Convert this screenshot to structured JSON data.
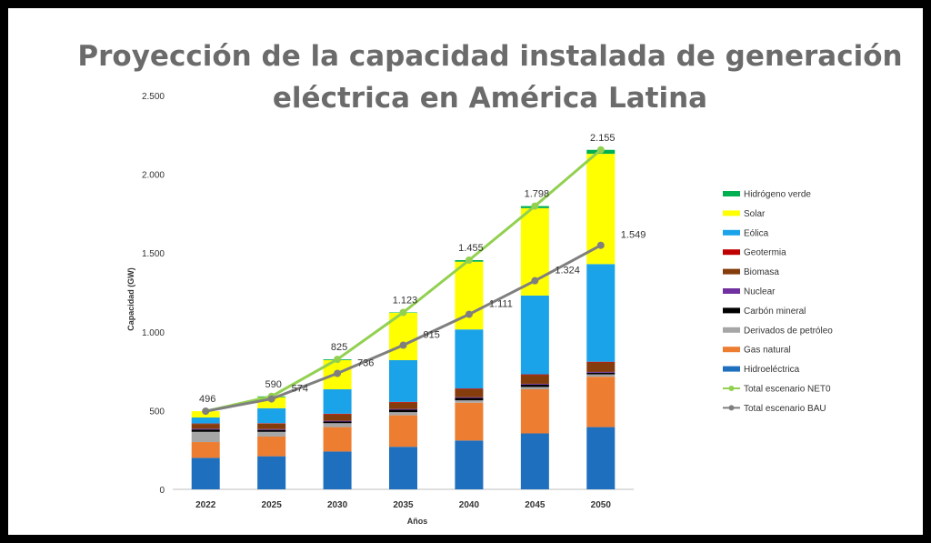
{
  "chart_data": {
    "type": "bar",
    "title": "Proyección de la capacidad instalada de generación eléctrica en América Latina",
    "xlabel": "Años",
    "ylabel": "Capacidad (GW)",
    "ylim": [
      0,
      2500
    ],
    "yticks": [
      0,
      500,
      1000,
      1500,
      2000,
      2500
    ],
    "ytick_labels": [
      "0",
      "500",
      "1.000",
      "1.500",
      "2.000",
      "2.500"
    ],
    "categories": [
      "2022",
      "2025",
      "2030",
      "2035",
      "2040",
      "2045",
      "2050"
    ],
    "grid": false,
    "legend_position": "right",
    "stacked_series": [
      {
        "name": "Hidroeléctrica",
        "color": "#1f6fbf",
        "values": [
          200,
          210,
          240,
          270,
          310,
          355,
          395
        ]
      },
      {
        "name": "Gas natural",
        "color": "#ed7d31",
        "values": [
          100,
          125,
          155,
          200,
          240,
          280,
          320
        ]
      },
      {
        "name": "Derivados de petróleo",
        "color": "#a6a6a6",
        "values": [
          65,
          30,
          25,
          20,
          15,
          15,
          15
        ]
      },
      {
        "name": "Carbón mineral",
        "color": "#000000",
        "values": [
          15,
          12,
          10,
          15,
          15,
          15,
          10
        ]
      },
      {
        "name": "Nuclear",
        "color": "#7030a0",
        "values": [
          5,
          5,
          5,
          5,
          5,
          5,
          5
        ]
      },
      {
        "name": "Biomasa",
        "color": "#843c0c",
        "values": [
          30,
          35,
          40,
          40,
          50,
          55,
          60
        ]
      },
      {
        "name": "Geotermia",
        "color": "#c00000",
        "values": [
          3,
          3,
          5,
          5,
          5,
          5,
          5
        ]
      },
      {
        "name": "Eólica",
        "color": "#1aa3e8",
        "values": [
          38,
          95,
          155,
          265,
          375,
          500,
          620
        ]
      },
      {
        "name": "Solar",
        "color": "#ffff00",
        "values": [
          40,
          70,
          185,
          300,
          430,
          555,
          700
        ]
      },
      {
        "name": "Hidrógeno verde",
        "color": "#00b050",
        "values": [
          0,
          5,
          5,
          3,
          10,
          13,
          25
        ]
      }
    ],
    "line_series": [
      {
        "name": "Total escenario NET0",
        "color": "#92d050",
        "values": [
          496,
          590,
          825,
          1123,
          1455,
          1798,
          2155
        ],
        "labels": [
          "496",
          "590",
          "825",
          "1.123",
          "1.455",
          "1.798",
          "2.155"
        ]
      },
      {
        "name": "Total escenario BAU",
        "color": "#7f7f7f",
        "values": [
          496,
          574,
          736,
          915,
          1111,
          1324,
          1549
        ],
        "labels": [
          "",
          "574",
          "736",
          "915",
          "1.111",
          "1.324",
          "1.549"
        ]
      }
    ]
  }
}
